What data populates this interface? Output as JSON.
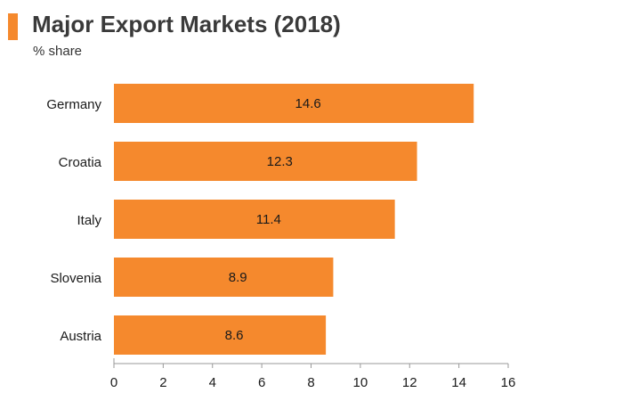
{
  "header": {
    "title": "Major Export Markets (2018)",
    "subtitle": "% share"
  },
  "colors": {
    "accent": "#f5892d",
    "bar": "#f5892d",
    "axis": "#999999",
    "text": "#1a1a1a"
  },
  "chart_data": {
    "type": "bar",
    "orientation": "horizontal",
    "title": "Major Export Markets (2018)",
    "subtitle": "% share",
    "categories": [
      "Germany",
      "Croatia",
      "Italy",
      "Slovenia",
      "Austria"
    ],
    "values": [
      14.6,
      12.3,
      11.4,
      8.9,
      8.6
    ],
    "data_labels": [
      "14.6",
      "12.3",
      "11.4",
      "8.9",
      "8.6"
    ],
    "xlim": [
      0,
      16
    ],
    "x_ticks": [
      0,
      2,
      4,
      6,
      8,
      10,
      12,
      14,
      16
    ],
    "xlabel": "",
    "ylabel": "",
    "grid": false,
    "legend": "none"
  }
}
